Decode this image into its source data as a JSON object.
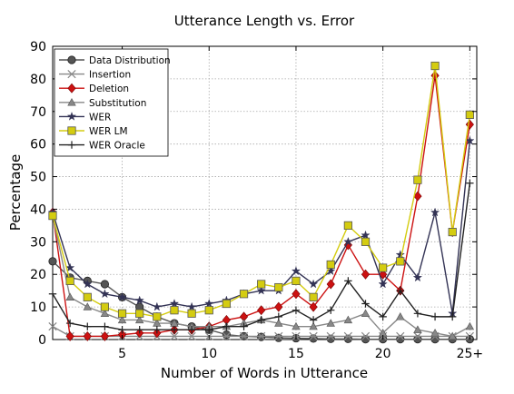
{
  "chart_data": {
    "type": "line",
    "title": "Utterance Length vs. Error",
    "xlabel": "Number of Words in Utterance",
    "ylabel": "Percentage",
    "xlim": [
      1,
      25.4
    ],
    "ylim": [
      0,
      90
    ],
    "x": [
      1,
      2,
      3,
      4,
      5,
      6,
      7,
      8,
      9,
      10,
      11,
      12,
      13,
      14,
      15,
      16,
      17,
      18,
      19,
      20,
      21,
      22,
      23,
      24,
      25
    ],
    "xticks": [
      5,
      10,
      15,
      20,
      25
    ],
    "xtick_labels": [
      "5",
      "10",
      "15",
      "20",
      "25+"
    ],
    "yticks": [
      0,
      10,
      20,
      30,
      40,
      50,
      60,
      70,
      80,
      90
    ],
    "ytick_labels": [
      "0",
      "10",
      "20",
      "30",
      "40",
      "50",
      "60",
      "70",
      "80",
      "90"
    ],
    "grid": true,
    "legend_position": "top-left",
    "series": [
      {
        "name": "Data Distribution",
        "color": "#555555",
        "marker": "circle",
        "values": [
          24,
          19,
          18,
          17,
          13,
          10,
          7,
          5,
          4,
          3,
          1.5,
          1,
          0.8,
          0.5,
          0.4,
          0.3,
          0.2,
          0.2,
          0.1,
          0.1,
          0.1,
          0.1,
          0.1,
          0.1,
          0.1
        ]
      },
      {
        "name": "Insertion",
        "color": "#888888",
        "marker": "x",
        "values": [
          4,
          1,
          1,
          1,
          1,
          1,
          1,
          1,
          1,
          1,
          1,
          1,
          1,
          1,
          1,
          1,
          1,
          1,
          1,
          1,
          1,
          1,
          1,
          1,
          1
        ]
      },
      {
        "name": "Deletion",
        "color": "#cc1111",
        "marker": "diamond",
        "values": [
          39,
          1,
          1,
          1,
          1.5,
          2,
          2,
          3,
          3,
          4,
          6,
          7,
          9,
          10,
          14,
          10,
          17,
          29,
          20,
          20,
          15,
          44,
          81,
          33,
          66
        ]
      },
      {
        "name": "Substitution",
        "color": "#888888",
        "marker": "triangle",
        "values": [
          38,
          13,
          10,
          8,
          6,
          6,
          5,
          5,
          4,
          4,
          4,
          5,
          6,
          5,
          4,
          4,
          5,
          6,
          8,
          2,
          7,
          3,
          2,
          1,
          4
        ]
      },
      {
        "name": "WER",
        "color": "#333355",
        "marker": "star",
        "values": [
          39,
          22,
          17,
          14,
          13,
          12,
          10,
          11,
          10,
          11,
          12,
          14,
          15,
          15,
          21,
          17,
          21,
          30,
          32,
          17,
          26,
          19,
          39,
          8,
          61
        ]
      },
      {
        "name": "WER LM",
        "color": "#d4cc10",
        "marker": "square",
        "values": [
          38,
          18,
          13,
          10,
          8,
          8,
          7,
          9,
          8,
          9,
          11,
          14,
          17,
          16,
          18,
          13,
          23,
          35,
          30,
          22,
          24,
          49,
          84,
          33,
          69
        ]
      },
      {
        "name": "WER Oracle",
        "color": "#222222",
        "marker": "plus",
        "values": [
          14,
          5,
          4,
          4,
          3,
          3,
          3,
          3,
          3,
          3,
          4,
          4,
          6,
          7,
          9,
          6,
          9,
          18,
          11,
          7,
          15,
          8,
          7,
          7,
          48
        ]
      }
    ]
  }
}
